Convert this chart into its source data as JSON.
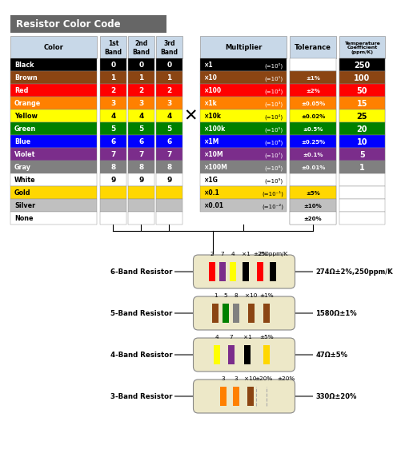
{
  "title": "Resistor Color Code",
  "title_bg": "#666666",
  "title_color": "white",
  "colors": [
    "Black",
    "Brown",
    "Red",
    "Orange",
    "Yellow",
    "Green",
    "Blue",
    "Violet",
    "Gray",
    "White",
    "Gold",
    "Silver",
    "None"
  ],
  "color_hex": [
    "#000000",
    "#8B4513",
    "#FF0000",
    "#FF8000",
    "#FFFF00",
    "#008000",
    "#0000FF",
    "#7B2D8B",
    "#808080",
    "#FFFFFF",
    "#FFD700",
    "#C0C0C0",
    "#FFFFFF"
  ],
  "color_text": [
    "white",
    "white",
    "white",
    "white",
    "black",
    "white",
    "white",
    "white",
    "white",
    "black",
    "black",
    "black",
    "black"
  ],
  "band_values": [
    "0",
    "1",
    "2",
    "3",
    "4",
    "5",
    "6",
    "7",
    "8",
    "9",
    "",
    "",
    ""
  ],
  "mult_labels": [
    "×1",
    "(=10⁰)",
    "×10",
    "(=10¹)",
    "×100",
    "(=10²)",
    "×1k",
    "(=10³)",
    "×10k",
    "(=10⁴)",
    "×100k",
    "(=10⁵)",
    "×1M",
    "(=10⁶)",
    "×10M",
    "(=10⁷)",
    "×100M",
    "(=10⁸)",
    "×1G",
    "(=10⁹)",
    "×0.1",
    "(=10⁻¹)",
    "×0.01",
    "(=10⁻²)"
  ],
  "mult_colors": [
    "#000000",
    "#8B4513",
    "#FF0000",
    "#FF8000",
    "#FFFF00",
    "#008000",
    "#0000FF",
    "#7B2D8B",
    "#808080",
    "#FFFFFF",
    "#FFD700",
    "#C0C0C0"
  ],
  "mult_text": [
    "white",
    "white",
    "white",
    "white",
    "black",
    "white",
    "white",
    "white",
    "white",
    "black",
    "black",
    "black"
  ],
  "tol_map": [
    [
      1,
      "±1%",
      "#8B4513",
      "white"
    ],
    [
      2,
      "±2%",
      "#FF0000",
      "white"
    ],
    [
      3,
      "±0.05%",
      "#FF8000",
      "white"
    ],
    [
      4,
      "±0.02%",
      "#FFFF00",
      "black"
    ],
    [
      5,
      "±0.5%",
      "#008000",
      "white"
    ],
    [
      6,
      "±0.25%",
      "#0000FF",
      "white"
    ],
    [
      7,
      "±0.1%",
      "#7B2D8B",
      "white"
    ],
    [
      8,
      "±0.01%",
      "#808080",
      "white"
    ],
    [
      10,
      "±5%",
      "#FFD700",
      "black"
    ],
    [
      11,
      "±10%",
      "#C0C0C0",
      "black"
    ],
    [
      12,
      "±20%",
      "#FFFFFF",
      "black"
    ]
  ],
  "tempco_data": [
    [
      0,
      "250",
      "#000000",
      "white"
    ],
    [
      1,
      "100",
      "#8B4513",
      "white"
    ],
    [
      2,
      "50",
      "#FF0000",
      "white"
    ],
    [
      3,
      "15",
      "#FF8000",
      "white"
    ],
    [
      4,
      "25",
      "#FFFF00",
      "black"
    ],
    [
      5,
      "20",
      "#008000",
      "white"
    ],
    [
      6,
      "10",
      "#0000FF",
      "white"
    ],
    [
      7,
      "5",
      "#7B2D8B",
      "white"
    ],
    [
      8,
      "1",
      "#808080",
      "white"
    ]
  ],
  "header_bg": "#C8D8E8",
  "res6": {
    "bands": [
      "#FF0000",
      "#7B2D8B",
      "#FFFF00",
      "#000000",
      "#FF0000",
      "#000000"
    ],
    "labels": [
      "2",
      "7",
      "4",
      "×1",
      "±2%",
      "250ppm/K"
    ],
    "result": "274Ω±2%,250ppm/K",
    "name": "6-Band Resistor"
  },
  "res5": {
    "bands": [
      "#8B4513",
      "#008000",
      "#808080",
      "#8B4513",
      "#8B4513"
    ],
    "labels": [
      "1",
      "5",
      "8",
      "×10",
      "±1%"
    ],
    "result": "1580Ω±1%",
    "name": "5-Band Resistor"
  },
  "res4": {
    "bands": [
      "#FFFF00",
      "#7B2D8B",
      "#000000",
      "#FFD700"
    ],
    "labels": [
      "4",
      "7",
      "×1",
      "±5%"
    ],
    "result": "47Ω±5%",
    "name": "4-Band Resistor"
  },
  "res3": {
    "bands": [
      "#FF8000",
      "#FF8000",
      "#8B4513"
    ],
    "labels": [
      "3",
      "3",
      "×10",
      "±20%"
    ],
    "result": "330Ω±20%",
    "name": "3-Band Resistor"
  }
}
